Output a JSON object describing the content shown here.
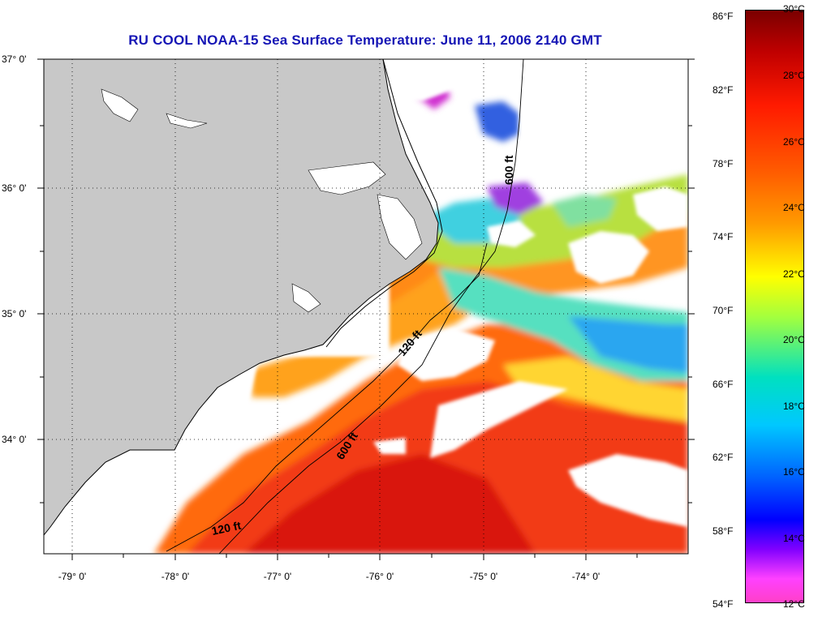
{
  "title": "RU COOL  NOAA-15  Sea Surface Temperature:  June 11, 2006 2140 GMT",
  "axes": {
    "lon_labels": [
      "-79° 0'",
      "-78° 0'",
      "-77° 0'",
      "-76° 0'",
      "-75° 0'",
      "-74° 0'"
    ],
    "lat_labels": [
      "37° 0'",
      "36° 0'",
      "35° 0'",
      "34° 0'"
    ]
  },
  "contours": {
    "label_120": "120 ft",
    "label_600": "600 ft"
  },
  "colorbar": {
    "fahrenheit": [
      "86°F",
      "82°F",
      "78°F",
      "74°F",
      "70°F",
      "66°F",
      "62°F",
      "58°F",
      "54°F"
    ],
    "celsius": [
      "30°C",
      "28°C",
      "26°C",
      "24°C",
      "22°C",
      "20°C",
      "18°C",
      "16°C",
      "14°C",
      "12°C"
    ],
    "stops": [
      "#7a0000",
      "#ff0000",
      "#ff8000",
      "#ffff00",
      "#00ffff",
      "#0000ff",
      "#8000ff",
      "#ff00ff"
    ]
  },
  "colors": {
    "land": "#c8c8c8",
    "title": "#1515b5"
  }
}
